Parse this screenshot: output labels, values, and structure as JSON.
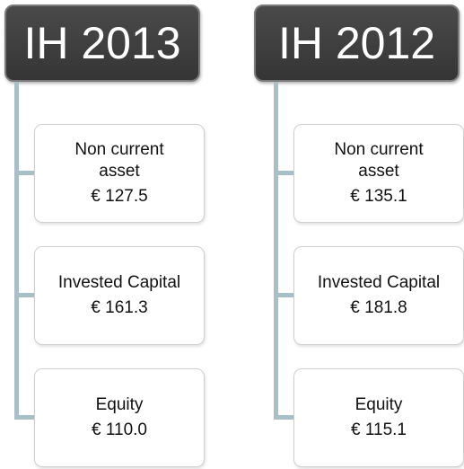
{
  "columns": [
    {
      "header": "IH 2013",
      "items": [
        {
          "label_lines": [
            "Non current",
            "asset"
          ],
          "value": "€ 127.5"
        },
        {
          "label_lines": [
            "Invested Capital"
          ],
          "value": "€ 161.3"
        },
        {
          "label_lines": [
            "Equity"
          ],
          "value": "€ 110.0"
        }
      ]
    },
    {
      "header": "IH 2012",
      "items": [
        {
          "label_lines": [
            "Non current",
            "asset"
          ],
          "value": "€ 135.1"
        },
        {
          "label_lines": [
            "Invested Capital"
          ],
          "value": "€ 181.8"
        },
        {
          "label_lines": [
            "Equity"
          ],
          "value": "€ 115.1"
        }
      ]
    }
  ]
}
